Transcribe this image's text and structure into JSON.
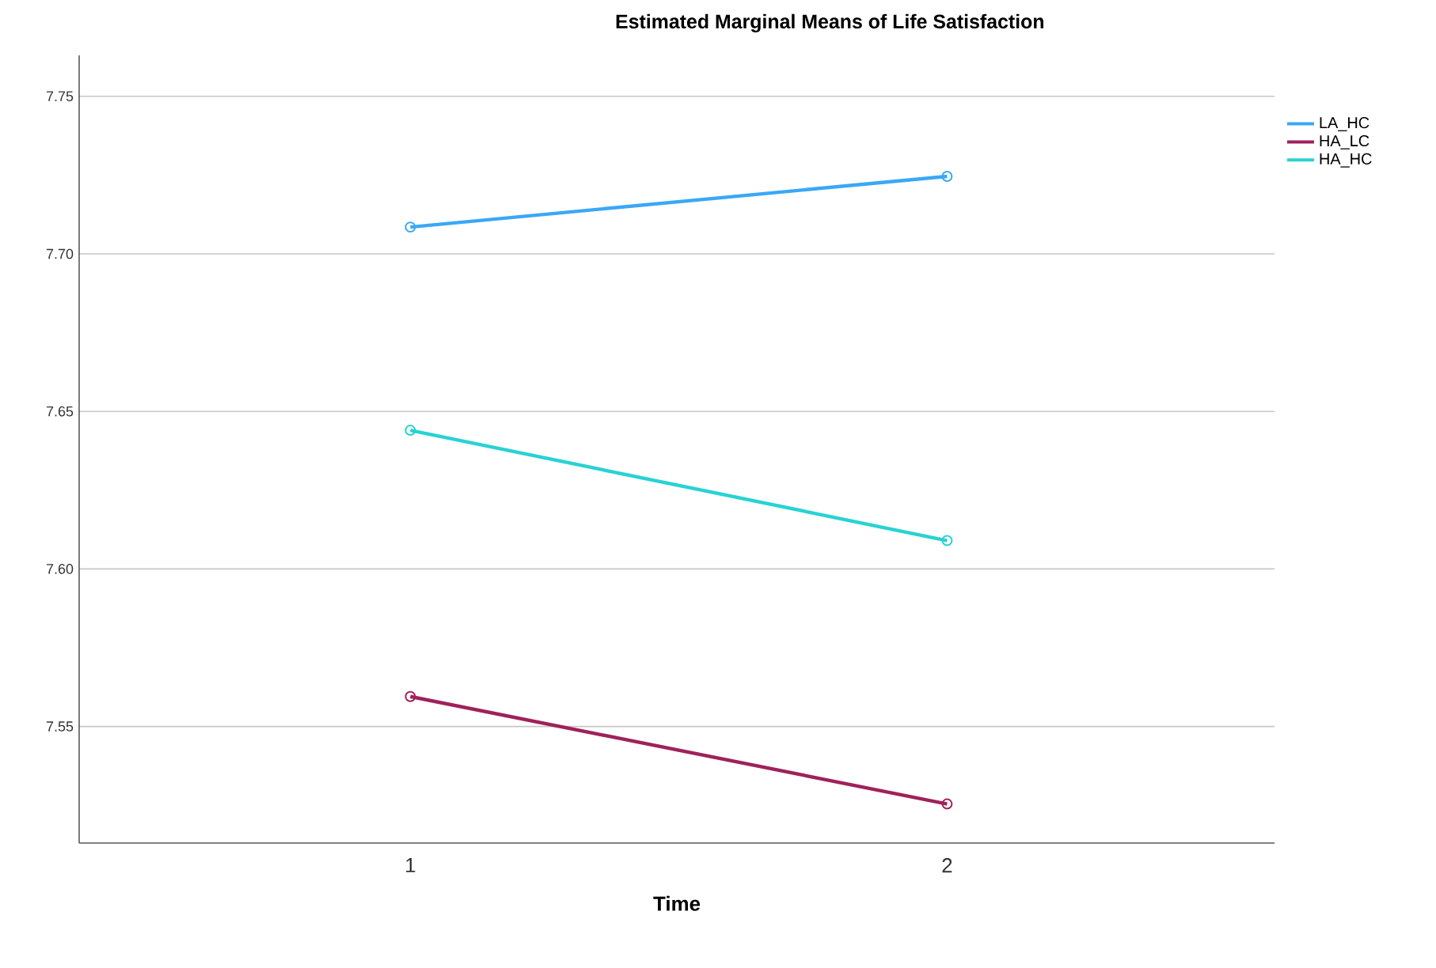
{
  "chart_data": {
    "type": "line",
    "title": "Estimated Marginal Means of Life Satisfaction",
    "xlabel": "Time",
    "categories": [
      "1",
      "2"
    ],
    "series": [
      {
        "name": "LA_HC",
        "color": "#3aa8f5",
        "values": [
          7.7085,
          7.7246
        ]
      },
      {
        "name": "HA_LC",
        "color": "#a0215a",
        "values": [
          7.5595,
          7.5254
        ]
      },
      {
        "name": "HA_HC",
        "color": "#28d2d4",
        "values": [
          7.644,
          7.609
        ]
      }
    ],
    "ylim": [
      7.513,
      7.763
    ],
    "yticks": [
      7.55,
      {
        "value": 7.6,
        "label": "7.60"
      },
      7.65,
      {
        "value": 7.7,
        "label": "7.70"
      },
      7.75
    ],
    "grid": "y",
    "legend": "top right",
    "marker": "circle",
    "line_style": "solid"
  }
}
